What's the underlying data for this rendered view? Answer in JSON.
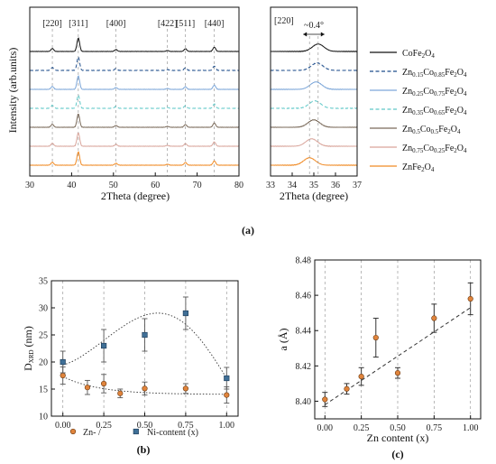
{
  "chart_data": [
    {
      "id": "a_left",
      "type": "line",
      "panel_label": "(a)",
      "xlabel": "2Theta (degree)",
      "ylabel": "Intensity (arb.units)",
      "xlim": [
        30,
        80
      ],
      "xticks": [
        30,
        40,
        50,
        60,
        70,
        80
      ],
      "y_ticks_shown": false,
      "peak_labels": [
        "[220]",
        "[311]",
        "[400]",
        "[422]",
        "[511]",
        "[440]"
      ],
      "peak_positions": [
        35.4,
        41.6,
        50.6,
        62.9,
        67.2,
        74.1
      ],
      "peak_heights": [
        0.22,
        1.0,
        0.14,
        0.07,
        0.2,
        0.32
      ],
      "series": [
        {
          "name_parts": [
            [
              "CoFe",
              ""
            ],
            [
              "2",
              "sub"
            ],
            [
              "O",
              ""
            ],
            [
              "4",
              "sub"
            ]
          ],
          "color": "#111111",
          "dash": "solid"
        },
        {
          "name_parts": [
            [
              "Zn",
              ""
            ],
            [
              "0.15",
              "sub"
            ],
            [
              "Co",
              ""
            ],
            [
              "0.85",
              "sub"
            ],
            [
              "Fe",
              ""
            ],
            [
              "2",
              "sub"
            ],
            [
              "O",
              ""
            ],
            [
              "4",
              "sub"
            ]
          ],
          "color": "#1f4e8c",
          "dash": "dashed"
        },
        {
          "name_parts": [
            [
              "Zn",
              ""
            ],
            [
              "0.25",
              "sub"
            ],
            [
              "Co",
              ""
            ],
            [
              "0.75",
              "sub"
            ],
            [
              "Fe",
              ""
            ],
            [
              "2",
              "sub"
            ],
            [
              "O",
              ""
            ],
            [
              "4",
              "sub"
            ]
          ],
          "color": "#7da7d9",
          "dash": "solid"
        },
        {
          "name_parts": [
            [
              "Zn",
              ""
            ],
            [
              "0.35",
              "sub"
            ],
            [
              "Co",
              ""
            ],
            [
              "0.65",
              "sub"
            ],
            [
              "Fe",
              ""
            ],
            [
              "2",
              "sub"
            ],
            [
              "O",
              ""
            ],
            [
              "4",
              "sub"
            ]
          ],
          "color": "#5fc8c8",
          "dash": "dashed"
        },
        {
          "name_parts": [
            [
              "Zn",
              ""
            ],
            [
              "0.5",
              "sub"
            ],
            [
              "Co",
              ""
            ],
            [
              "0.5",
              "sub"
            ],
            [
              "Fe",
              ""
            ],
            [
              "2",
              "sub"
            ],
            [
              "O",
              ""
            ],
            [
              "4",
              "sub"
            ]
          ],
          "color": "#7a6a5a",
          "dash": "solid"
        },
        {
          "name_parts": [
            [
              "Zn",
              ""
            ],
            [
              "0.75",
              "sub"
            ],
            [
              "Co",
              ""
            ],
            [
              "0.25",
              "sub"
            ],
            [
              "Fe",
              ""
            ],
            [
              "2",
              "sub"
            ],
            [
              "O",
              ""
            ],
            [
              "4",
              "sub"
            ]
          ],
          "color": "#d9a59b",
          "dash": "solid"
        },
        {
          "name_parts": [
            [
              "ZnFe",
              ""
            ],
            [
              "2",
              "sub"
            ],
            [
              "O",
              ""
            ],
            [
              "4",
              "sub"
            ]
          ],
          "color": "#f08a24",
          "dash": "solid"
        }
      ]
    },
    {
      "id": "a_right",
      "type": "line",
      "xlabel": "2Theta (degree)",
      "xlim": [
        33,
        37
      ],
      "xticks": [
        33,
        34,
        35,
        36,
        37
      ],
      "peak_label": "[220]",
      "annotation": "~0.4°",
      "peak_centers": [
        35.2,
        35.15,
        35.1,
        35.05,
        35.0,
        34.9,
        34.8
      ]
    },
    {
      "id": "b",
      "type": "scatter",
      "panel_label": "(b)",
      "xlabel": "",
      "ylabel_parts": [
        [
          "D",
          ""
        ],
        [
          "XRD",
          "sub"
        ],
        [
          " (nm)",
          ""
        ]
      ],
      "xlim": [
        -0.07,
        1.07
      ],
      "ylim": [
        10,
        35
      ],
      "xticks": [
        0.0,
        0.25,
        0.5,
        0.75,
        1.0
      ],
      "xtick_labels": [
        "0.00",
        "0.25",
        "0.50",
        "0.75",
        "1.00"
      ],
      "yticks": [
        10,
        15,
        20,
        25,
        30,
        35
      ],
      "legend": [
        "Zn- /",
        "Ni-content (x)"
      ],
      "series": [
        {
          "name": "Zn- /",
          "marker": "circle",
          "color": "#e0843c",
          "x": [
            0.0,
            0.15,
            0.25,
            0.35,
            0.5,
            0.75,
            1.0
          ],
          "y": [
            17.5,
            15.3,
            16.0,
            14.2,
            15.1,
            15.1,
            13.9
          ],
          "err": [
            1.6,
            1.3,
            1.7,
            0.8,
            1.2,
            0.9,
            1.5
          ]
        },
        {
          "name": "Ni-content (x)",
          "marker": "square",
          "color": "#3f6f96",
          "x": [
            0.0,
            0.25,
            0.5,
            0.75,
            1.0
          ],
          "y": [
            20.0,
            23.0,
            25.0,
            29.0,
            17.0
          ],
          "err": [
            2.0,
            3.0,
            3.0,
            3.0,
            2.0
          ]
        }
      ]
    },
    {
      "id": "c",
      "type": "scatter",
      "panel_label": "(c)",
      "xlabel": "Zn content (x)",
      "ylabel": "a (Å)",
      "xlim": [
        -0.07,
        1.07
      ],
      "ylim": [
        8.39,
        8.48
      ],
      "xticks": [
        0.0,
        0.25,
        0.5,
        0.75,
        1.0
      ],
      "xtick_labels": [
        "0.00",
        "0.25",
        "0.50",
        "0.75",
        "1.00"
      ],
      "yticks": [
        8.4,
        8.42,
        8.44,
        8.46,
        8.48
      ],
      "ytick_labels": [
        "8.40",
        "8.42",
        "8.44",
        "8.46",
        "8.48"
      ],
      "series": [
        {
          "marker": "circle",
          "color": "#e0843c",
          "x": [
            0.0,
            0.15,
            0.25,
            0.35,
            0.5,
            0.75,
            1.0
          ],
          "y": [
            8.401,
            8.407,
            8.414,
            8.436,
            8.416,
            8.447,
            8.458
          ],
          "err": [
            0.004,
            0.003,
            0.005,
            0.011,
            0.003,
            0.008,
            0.009
          ]
        }
      ],
      "fit_line": {
        "x": [
          0.0,
          1.0
        ],
        "y": [
          8.398,
          8.453
        ]
      }
    }
  ]
}
